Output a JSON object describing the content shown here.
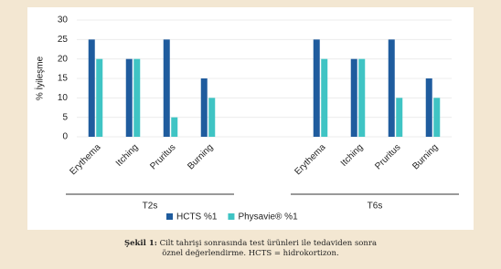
{
  "chart_data": {
    "type": "bar",
    "ylabel": "% İyileşme",
    "categories": [
      "Erythema",
      "Itching",
      "Pruritus",
      "Burning",
      null,
      null,
      "Erythema",
      "Itching",
      "Pruritus",
      "Burning"
    ],
    "group_labels": [
      "T2s",
      "T6s"
    ],
    "series": [
      {
        "name": "HCTS %1",
        "color": "#1f5c9e",
        "values": [
          25,
          20,
          25,
          15,
          null,
          null,
          25,
          20,
          25,
          15
        ]
      },
      {
        "name": "Physavie® %1",
        "color": "#3fc4c4",
        "values": [
          20,
          20,
          5,
          10,
          null,
          null,
          20,
          20,
          10,
          10
        ]
      }
    ],
    "ylim": [
      0,
      30
    ],
    "yticks": [
      0,
      5,
      10,
      15,
      20,
      25,
      30
    ],
    "grid": true
  },
  "caption": {
    "label": "Şekil 1:",
    "text": "Cilt tahrişi sonrasında test ürünleri ile tedaviden sonra öznel değerlendirme. HCTS = hidrokortizon."
  }
}
